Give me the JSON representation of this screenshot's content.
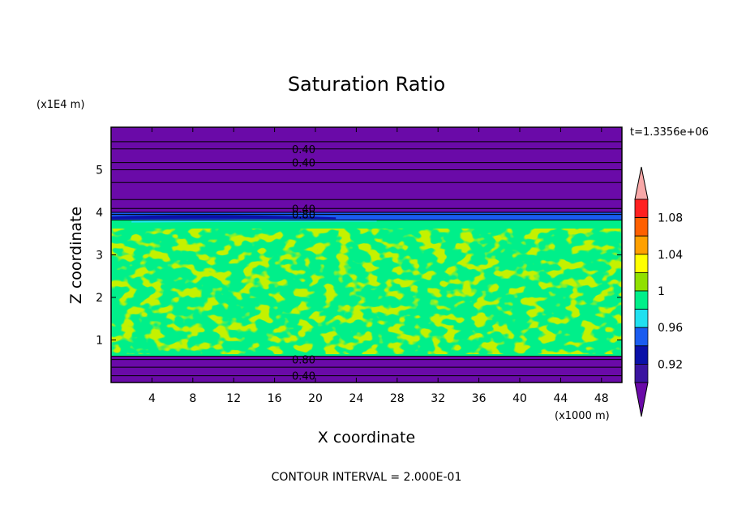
{
  "chart_data": {
    "type": "heatmap",
    "title": "Saturation Ratio",
    "xlabel": "X coordinate",
    "ylabel": "Z coordinate",
    "x_unit": "(x1000 m)",
    "y_unit": "(x1E4 m)",
    "time_label": "t=1.3356e+06",
    "footer": "CONTOUR INTERVAL = 2.000E-01",
    "xlim": [
      0,
      50
    ],
    "ylim": [
      0,
      6
    ],
    "x_ticks": [
      "4",
      "8",
      "12",
      "16",
      "20",
      "24",
      "28",
      "32",
      "36",
      "40",
      "44",
      "48"
    ],
    "y_ticks": [
      "1",
      "2",
      "3",
      "4",
      "5"
    ],
    "contour_labels": [
      {
        "text": "0.40",
        "x": 17.7,
        "z": 5.49
      },
      {
        "text": "0.40",
        "x": 17.7,
        "z": 5.17
      },
      {
        "text": "0.40",
        "x": 17.7,
        "z": 4.09
      },
      {
        "text": "0.80",
        "x": 17.7,
        "z": 3.95
      },
      {
        "text": "0.80",
        "x": 17.7,
        "z": 0.54
      },
      {
        "text": "0.40",
        "x": 17.7,
        "z": 0.16
      }
    ],
    "colorbar": {
      "levels": [
        0.92,
        0.96,
        1,
        1.04,
        1.08
      ],
      "labels": [
        "0.92",
        "0.96",
        "1",
        "1.04",
        "1.08"
      ],
      "colors": [
        "#3a14a0",
        "#0a10a8",
        "#1a5cf0",
        "#20e0f0",
        "#00ef8a",
        "#90e000",
        "#ffff00",
        "#ffa000",
        "#ff6000",
        "#ff2020",
        "#f8a8a8"
      ],
      "under_color": "#6a0aa8",
      "over_color": "#f8a8a8"
    },
    "bands": [
      {
        "z_range": [
          4.0,
          6.0
        ],
        "value": "below 0.92",
        "color": "#6a0aa8"
      },
      {
        "z_range": [
          3.82,
          4.0
        ],
        "value": "0.92-0.98",
        "color": "#1a5cf0"
      },
      {
        "z_range": [
          0.62,
          3.82
        ],
        "value": "0.98-1.01",
        "color": "#00ef8a"
      },
      {
        "z_range": [
          0.0,
          0.62
        ],
        "value": "below 0.92",
        "color": "#6a0aa8"
      }
    ]
  }
}
